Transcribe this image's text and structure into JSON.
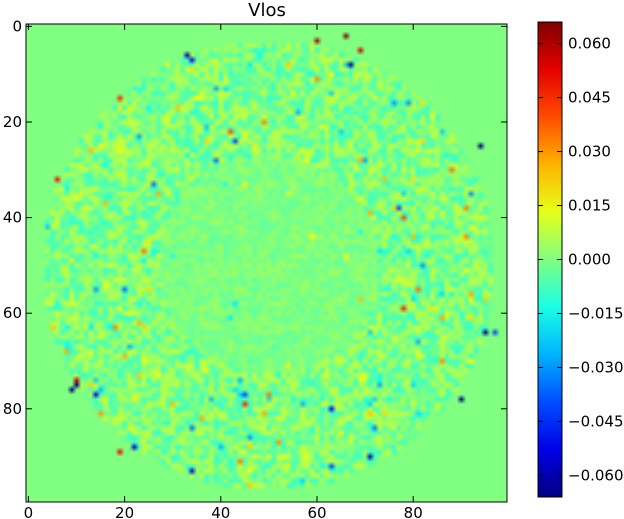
{
  "chart_data": {
    "type": "heatmap",
    "title": "Vlos",
    "xlabel": "",
    "ylabel": "",
    "xlim": [
      -0.5,
      99.5
    ],
    "ylim": [
      99.5,
      -0.5
    ],
    "x_ticks": [
      0,
      20,
      40,
      60,
      80
    ],
    "x_tick_labels": [
      "0",
      "20",
      "40",
      "60",
      "80"
    ],
    "y_ticks": [
      0,
      20,
      40,
      60,
      80
    ],
    "y_tick_labels": [
      "0",
      "20",
      "40",
      "60",
      "80"
    ],
    "grid_size": [
      100,
      100
    ],
    "background_value": 0.0,
    "colormap": "jet",
    "colorbar": {
      "min": -0.066,
      "max": 0.066,
      "ticks": [
        0.06,
        0.045,
        0.03,
        0.015,
        0.0,
        -0.015,
        -0.03,
        -0.045,
        -0.06
      ],
      "tick_labels": [
        "0.060",
        "0.045",
        "0.030",
        "0.015",
        "0.000",
        "−0.015",
        "−0.030",
        "−0.045",
        "−0.060"
      ]
    },
    "noise_region": {
      "center": [
        50,
        50
      ],
      "radius": 47,
      "inner_radius": 23
    },
    "notable_points": [
      {
        "x": 60,
        "y": 3,
        "value": 0.06
      },
      {
        "x": 66,
        "y": 2,
        "value": 0.066
      },
      {
        "x": 69,
        "y": 5,
        "value": 0.055
      },
      {
        "x": 33,
        "y": 6,
        "value": -0.06
      },
      {
        "x": 34,
        "y": 7,
        "value": -0.05
      },
      {
        "x": 67,
        "y": 8,
        "value": -0.066
      },
      {
        "x": 19,
        "y": 15,
        "value": 0.045
      },
      {
        "x": 42,
        "y": 22,
        "value": 0.04
      },
      {
        "x": 43,
        "y": 24,
        "value": -0.04
      },
      {
        "x": 39,
        "y": 28,
        "value": -0.035
      },
      {
        "x": 94,
        "y": 25,
        "value": -0.066
      },
      {
        "x": 6,
        "y": 32,
        "value": 0.05
      },
      {
        "x": 26,
        "y": 33,
        "value": -0.035
      },
      {
        "x": 77,
        "y": 38,
        "value": -0.04
      },
      {
        "x": 78,
        "y": 40,
        "value": 0.04
      },
      {
        "x": 24,
        "y": 47,
        "value": 0.035
      },
      {
        "x": 20,
        "y": 55,
        "value": -0.035
      },
      {
        "x": 81,
        "y": 55,
        "value": 0.035
      },
      {
        "x": 78,
        "y": 59,
        "value": 0.045
      },
      {
        "x": 95,
        "y": 64,
        "value": -0.066
      },
      {
        "x": 97,
        "y": 64,
        "value": -0.04
      },
      {
        "x": 10,
        "y": 74,
        "value": 0.055
      },
      {
        "x": 10,
        "y": 75,
        "value": -0.066
      },
      {
        "x": 9,
        "y": 76,
        "value": -0.066
      },
      {
        "x": 14,
        "y": 77,
        "value": -0.05
      },
      {
        "x": 45,
        "y": 79,
        "value": 0.045
      },
      {
        "x": 45,
        "y": 77,
        "value": -0.04
      },
      {
        "x": 63,
        "y": 80,
        "value": -0.05
      },
      {
        "x": 90,
        "y": 78,
        "value": -0.066
      },
      {
        "x": 22,
        "y": 88,
        "value": -0.055
      },
      {
        "x": 19,
        "y": 89,
        "value": 0.05
      },
      {
        "x": 71,
        "y": 90,
        "value": -0.06
      },
      {
        "x": 34,
        "y": 93,
        "value": -0.055
      },
      {
        "x": 63,
        "y": 92,
        "value": -0.04
      }
    ]
  }
}
